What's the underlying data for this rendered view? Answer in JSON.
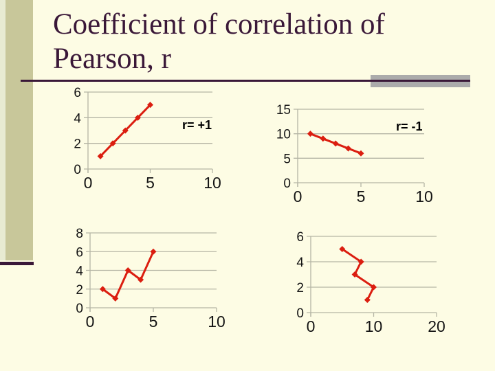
{
  "slide": {
    "title_line1": "Coefficient of correlation of",
    "title_line2": "Pearson, r"
  },
  "colors": {
    "background": "#FDFCE4",
    "left_strip": "#E8EBD2",
    "sidebar": "#C8C79A",
    "title_text": "#3A1838",
    "rule": "#3A1838",
    "accent_bar": "#ABABAB",
    "series": "#DB1E10",
    "gridline": "#B5B5A5",
    "tick_text": "#141414"
  },
  "chart_data": [
    {
      "type": "line",
      "annotation": "r= +1",
      "x": [
        1,
        2,
        3,
        4,
        5
      ],
      "y": [
        1,
        2,
        3,
        4,
        5
      ],
      "xlim": [
        0,
        10
      ],
      "ylim": [
        0,
        6
      ],
      "xticks": [
        0,
        5,
        10
      ],
      "yticks": [
        0,
        2,
        4,
        6
      ],
      "title": "",
      "xlabel": "",
      "ylabel": ""
    },
    {
      "type": "line",
      "annotation": "r= -1",
      "x": [
        1,
        2,
        3,
        4,
        5
      ],
      "y": [
        10,
        9,
        8,
        7,
        6
      ],
      "xlim": [
        0,
        10
      ],
      "ylim": [
        0,
        15
      ],
      "xticks": [
        0,
        5,
        10
      ],
      "yticks": [
        0,
        5,
        10,
        15
      ],
      "title": "",
      "xlabel": "",
      "ylabel": ""
    },
    {
      "type": "line",
      "annotation": "",
      "x": [
        1,
        2,
        3,
        4,
        5
      ],
      "y": [
        2,
        1,
        4,
        3,
        6
      ],
      "xlim": [
        0,
        10
      ],
      "ylim": [
        0,
        8
      ],
      "xticks": [
        0,
        5,
        10
      ],
      "yticks": [
        0,
        2,
        4,
        6,
        8
      ],
      "title": "",
      "xlabel": "",
      "ylabel": ""
    },
    {
      "type": "line",
      "annotation": "",
      "x": [
        5,
        8,
        7,
        10,
        9
      ],
      "y": [
        5,
        4,
        3,
        2,
        1
      ],
      "xlim": [
        0,
        20
      ],
      "ylim": [
        0,
        6
      ],
      "xticks": [
        0,
        10,
        20
      ],
      "yticks": [
        0,
        2,
        4,
        6
      ],
      "title": "",
      "xlabel": "",
      "ylabel": ""
    }
  ]
}
